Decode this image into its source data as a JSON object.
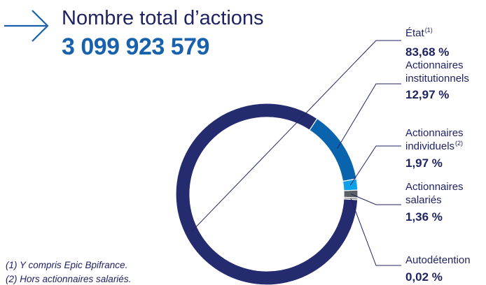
{
  "header": {
    "title": "Nombre total d’actions",
    "total": "3 099 923 579"
  },
  "colors": {
    "text": "#1f2363",
    "accent": "#1761ad",
    "arrow": "#1761ad"
  },
  "chart_data": {
    "type": "pie",
    "variant": "donut",
    "title": "",
    "slices": [
      {
        "name": "État",
        "sup": "(1)",
        "value": 83.68,
        "label": "83,68 %",
        "color": "#242b6e"
      },
      {
        "name": "Actionnaires institutionnels",
        "sup": "",
        "value": 12.97,
        "label": "12,97 %",
        "color": "#0a63ad"
      },
      {
        "name": "Actionnaires individuels",
        "sup": "(2)",
        "value": 1.97,
        "label": "1,97 %",
        "color": "#0ea1e8"
      },
      {
        "name": "Actionnaires salariés",
        "sup": "",
        "value": 1.36,
        "label": "1,36 %",
        "color": "#5b5f66"
      },
      {
        "name": "Autodétention",
        "sup": "",
        "value": 0.02,
        "label": "0,02 %",
        "color": "#8c8f94"
      }
    ],
    "legend_position": "right"
  },
  "footnotes": [
    "(1) Y compris Epic Bpifrance.",
    "(2) Hors actionnaires salariés."
  ]
}
